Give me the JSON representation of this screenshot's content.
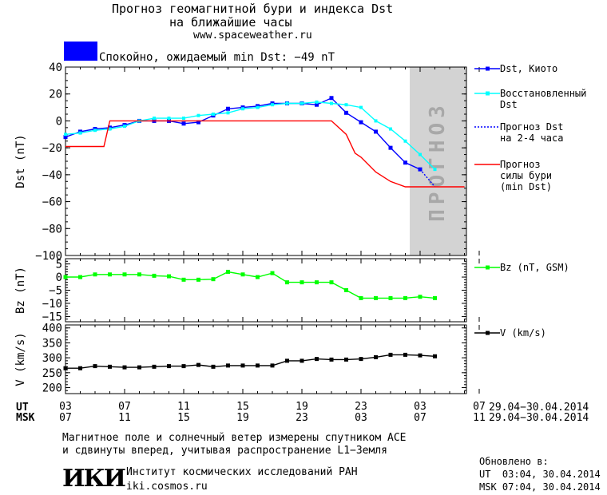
{
  "header": {
    "title_line1": "Прогноз геомагнитной бури и индекса Dst",
    "title_line2": "на ближайшие часы",
    "site": "www.spaceweather.ru",
    "status": "Спокойно, ожидаемый min Dst: −49 nT",
    "status_color": "#0000ff"
  },
  "chart_data": [
    {
      "type": "line",
      "ylabel": "Dst (nT)",
      "ylim": [
        -100,
        40
      ],
      "yticks": [
        "40",
        "20",
        "0",
        "−20",
        "−40",
        "−60",
        "−80",
        "−100"
      ],
      "forecast_label": "ПРОГНОЗ",
      "x_hours": [
        0,
        1,
        2,
        3,
        4,
        5,
        6,
        7,
        8,
        9,
        10,
        11,
        12,
        13,
        14,
        15,
        16,
        17,
        18,
        19,
        20,
        21,
        22,
        23,
        24,
        25
      ],
      "series": [
        {
          "name": "Dst, Киото",
          "color": "#0000ff",
          "x": [
            0,
            1,
            2,
            3,
            4,
            5,
            6,
            7,
            8,
            9,
            10,
            11,
            12,
            13,
            14,
            15,
            16,
            17,
            18,
            19,
            20,
            21,
            22,
            23,
            24
          ],
          "values": [
            -12,
            -8,
            -6,
            -5,
            -3,
            0,
            0,
            0,
            -2,
            -1,
            4,
            9,
            10,
            11,
            13,
            13,
            13,
            12,
            17,
            6,
            -1,
            -8,
            -20,
            -31,
            -36
          ]
        },
        {
          "name": "Восстановленный Dst",
          "color": "#00ffff",
          "x": [
            0,
            1,
            2,
            3,
            4,
            5,
            6,
            7,
            8,
            9,
            10,
            11,
            12,
            13,
            14,
            15,
            16,
            17,
            18,
            19,
            20,
            21,
            22,
            23,
            24,
            25
          ],
          "values": [
            -10,
            -9,
            -7,
            -6,
            -4,
            0,
            2,
            2,
            2,
            4,
            5,
            6,
            9,
            10,
            12,
            13,
            13,
            14,
            13,
            12,
            10,
            0,
            -6,
            -15,
            -25,
            -36
          ]
        },
        {
          "name": "Прогноз Dst на 2-4 часа",
          "color": "#0000ff",
          "dashed": true,
          "x": [
            24,
            25
          ],
          "values": [
            -36,
            -49
          ]
        },
        {
          "name": "Прогноз силы бури (min Dst)",
          "color": "#ff0000",
          "x": [
            0,
            1,
            2,
            2.6,
            3,
            4,
            5,
            6,
            7,
            8,
            9,
            10,
            11,
            12,
            13,
            14,
            15,
            16,
            17,
            18,
            19,
            19.6,
            20,
            21,
            22,
            23,
            24,
            25,
            26,
            27
          ],
          "values": [
            -19,
            -19,
            -19,
            -19,
            0,
            0,
            0,
            0,
            0,
            0,
            0,
            0,
            0,
            0,
            0,
            0,
            0,
            0,
            0,
            0,
            -10,
            -24,
            -27,
            -38,
            -45,
            -49,
            -49,
            -49,
            -49,
            -49
          ]
        }
      ],
      "legend": [
        {
          "line1": "Dst, Киото",
          "line2": ""
        },
        {
          "line1": "Восстановленный",
          "line2": "Dst"
        },
        {
          "line1": "Прогноз Dst",
          "line2": "на 2-4 часа"
        },
        {
          "line1": "Прогноз",
          "line2": "силы бури",
          "line3": "(min Dst)"
        }
      ]
    },
    {
      "type": "line",
      "ylabel": "Bz (nT)",
      "ylim": [
        -17,
        7
      ],
      "yticks": [
        "5",
        "0",
        "−5",
        "−10",
        "−15"
      ],
      "series": [
        {
          "name": "Bz (nT, GSM)",
          "color": "#00ff00",
          "x": [
            0,
            1,
            2,
            3,
            4,
            5,
            6,
            7,
            8,
            9,
            10,
            11,
            12,
            13,
            14,
            15,
            16,
            17,
            18,
            19,
            20,
            21,
            22,
            23,
            24,
            25
          ],
          "values": [
            0,
            0,
            1,
            1,
            1,
            1,
            0.5,
            0.3,
            -1,
            -1,
            -0.8,
            2,
            1,
            0,
            1.5,
            -2,
            -2,
            -2,
            -2,
            -5,
            -8,
            -8,
            -8,
            -8,
            -7.5,
            -8
          ]
        }
      ],
      "legend": [
        {
          "line1": "Bz (nT, GSM)"
        }
      ]
    },
    {
      "type": "line",
      "ylabel": "V (km/s)",
      "ylim": [
        180,
        410
      ],
      "yticks": [
        "400",
        "350",
        "300",
        "250",
        "200"
      ],
      "series": [
        {
          "name": "V (km/s)",
          "color": "#000000",
          "x": [
            0,
            1,
            2,
            3,
            4,
            5,
            6,
            7,
            8,
            9,
            10,
            11,
            12,
            13,
            14,
            15,
            16,
            17,
            18,
            19,
            20,
            21,
            22,
            23,
            24,
            25
          ],
          "values": [
            265,
            265,
            272,
            270,
            268,
            268,
            270,
            272,
            272,
            276,
            270,
            274,
            274,
            274,
            274,
            290,
            290,
            296,
            294,
            294,
            296,
            302,
            310,
            310,
            308,
            305
          ]
        }
      ],
      "legend": [
        {
          "line1": "V (km/s)"
        }
      ]
    }
  ],
  "axis": {
    "ut_label": "UT",
    "msk_label": "MSK",
    "ut_ticks": [
      "03",
      "07",
      "11",
      "15",
      "19",
      "23",
      "03",
      "07"
    ],
    "msk_ticks": [
      "07",
      "11",
      "15",
      "19",
      "23",
      "03",
      "07",
      "11"
    ],
    "date_range_ut": "29.04−30.04.2014",
    "date_range_msk": "29.04−30.04.2014"
  },
  "footer": {
    "note_line1": "Магнитное поле и солнечный ветер измерены спутником ACE",
    "note_line2": "и сдвинуты вперед, учитывая распространение L1−Земля",
    "logo": "ИКИ",
    "institute": "Институт космических исследований РАН",
    "site": "iki.cosmos.ru",
    "updated_label": "Обновлено в:",
    "updated_ut": "UT  03:04, 30.04.2014",
    "updated_msk": "MSK 07:04, 30.04.2014"
  }
}
